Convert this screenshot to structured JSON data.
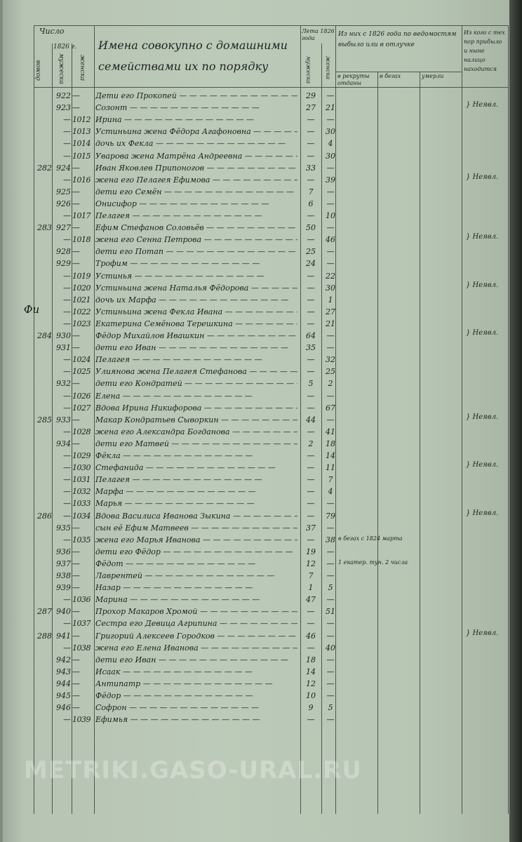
{
  "header": {
    "col_number": "Число",
    "col_houses": "домов",
    "col_year": "1826 г.",
    "col_male": "мужеска",
    "col_female": "женска",
    "col_names": "Имена совокупно с домашними семействами их по порядку",
    "col_ages": "Лета 1826 года",
    "col_age_male": "мужеска",
    "col_age_female": "женска",
    "col_departed": "Из них с 1826 года по ведомостям выбыло или в отлучке",
    "col_dep_1": "в рекруты отданы",
    "col_dep_2": "в бегах",
    "col_dep_3": "умерли",
    "col_remarks": "Из кого с тех пор прибыло и ныне налицо находится"
  },
  "margin_mark": "Фи",
  "rows": [
    {
      "m": "922",
      "name": "Дети его Прокопей",
      "am": "29"
    },
    {
      "m": "923",
      "name": "Созонт",
      "am": "27",
      "af": "21"
    },
    {
      "f": "1012",
      "name": "Ирина"
    },
    {
      "f": "1013",
      "name": "Устиньина жена Фёдора Агафоновна",
      "af": "30"
    },
    {
      "f": "1014",
      "name": "дочь их Фекла",
      "af": "4"
    },
    {
      "f": "1015",
      "name": "Уварова жена Матрёна Андреевна",
      "af": "30"
    },
    {
      "house": "282",
      "m": "924",
      "name": "Иван Яковлев Припоногов",
      "am": "33"
    },
    {
      "f": "1016",
      "name": "жена его Пелагея Ефимова",
      "af": "39"
    },
    {
      "m": "925",
      "name": "дети его Семён",
      "am": "7"
    },
    {
      "m": "926",
      "name": "Онисифор",
      "am": "6"
    },
    {
      "f": "1017",
      "name": "Пелагея",
      "af": "10"
    },
    {
      "house": "283",
      "m": "927",
      "name": "Ефим Стефанов Соловьёв",
      "am": "50"
    },
    {
      "f": "1018",
      "name": "жена его Сенна Петрова",
      "af": "46"
    },
    {
      "m": "928",
      "name": "дети его Потап",
      "am": "25"
    },
    {
      "m": "929",
      "name": "Трофим",
      "am": "24"
    },
    {
      "f": "1019",
      "name": "Устинья",
      "af": "22"
    },
    {
      "f": "1020",
      "name": "Устиньина жена Наталья Фёдорова",
      "af": "30"
    },
    {
      "f": "1021",
      "name": "дочь их Марфа",
      "af": "1"
    },
    {
      "f": "1022",
      "name": "Устиньина жена Фекла Ивана",
      "af": "27"
    },
    {
      "f": "1023",
      "name": "Екатерина Семёнова Терешкина",
      "af": "21"
    },
    {
      "house": "284",
      "m": "930",
      "name": "Фёдор Михайлов Ивашкин",
      "am": "64"
    },
    {
      "m": "931",
      "name": "дети его Иван",
      "am": "35"
    },
    {
      "f": "1024",
      "name": "Пелагея",
      "af": "32"
    },
    {
      "f": "1025",
      "name": "Улиянова жена Пелагея Стефанова",
      "af": "25"
    },
    {
      "m": "932",
      "name": "дети его Кондратей",
      "am": "5",
      "af": "2"
    },
    {
      "f": "1026",
      "name": "Елена"
    },
    {
      "f": "1027",
      "name": "Вдова Ирина Никифорова",
      "af": "67"
    },
    {
      "house": "285",
      "m": "933",
      "name": "Макар Кондратьев Сыворкин",
      "am": "44"
    },
    {
      "f": "1028",
      "name": "жена его Александра Богданова",
      "af": "41"
    },
    {
      "m": "934",
      "name": "дети его Матвей",
      "am": "2",
      "af": "18"
    },
    {
      "f": "1029",
      "name": "Фёкла",
      "af": "14"
    },
    {
      "f": "1030",
      "name": "Стефанида",
      "af": "11"
    },
    {
      "f": "1031",
      "name": "Пелагея",
      "af": "7"
    },
    {
      "f": "1032",
      "name": "Марфа",
      "af": "4"
    },
    {
      "f": "1033",
      "name": "Марья"
    },
    {
      "house": "286",
      "f": "1034",
      "name": "Вдова Василиса Иванова Зыкина",
      "af": "79"
    },
    {
      "m": "935",
      "name": "сын её Ефим Матвеев",
      "am": "37"
    },
    {
      "f": "1035",
      "name": "жена его Марья Иванова",
      "af": "38",
      "note": "в бегах с 1824 марта"
    },
    {
      "m": "936",
      "name": "дети его Фёдор",
      "am": "19"
    },
    {
      "m": "937",
      "name": "Фёдот",
      "am": "12",
      "note": "1 екатер. тун. 2 числа"
    },
    {
      "m": "938",
      "name": "Лаврентей",
      "am": "7"
    },
    {
      "m": "939",
      "name": "Назар",
      "am": "1",
      "af": "5"
    },
    {
      "f": "1036",
      "name": "Марина",
      "am": "47"
    },
    {
      "house": "287",
      "m": "940",
      "name": "Прохор Макаров Хромой",
      "af": "51"
    },
    {
      "f": "1037",
      "name": "Сестра его Девица Агрипина"
    },
    {
      "house": "288",
      "m": "941",
      "name": "Григорий Алексеев Городков",
      "am": "46"
    },
    {
      "f": "1038",
      "name": "жена его Елена Иванова",
      "af": "40"
    },
    {
      "m": "942",
      "name": "дети его Иван",
      "am": "18"
    },
    {
      "m": "943",
      "name": "Исаак",
      "am": "14"
    },
    {
      "m": "944",
      "name": "Антипатр",
      "am": "12"
    },
    {
      "m": "945",
      "name": "Фёдор",
      "am": "10"
    },
    {
      "m": "946",
      "name": "Софрон",
      "am": "9",
      "af": "5"
    },
    {
      "f": "1039",
      "name": "Ефимья"
    }
  ],
  "remarks": [
    {
      "row": 1,
      "text": "}  Неявл."
    },
    {
      "row": 7,
      "text": "}  Неявл."
    },
    {
      "row": 12,
      "text": "}  Неявл."
    },
    {
      "row": 16,
      "text": "}  Неявл."
    },
    {
      "row": 20,
      "text": "}  Неявл."
    },
    {
      "row": 27,
      "text": "}  Неявл."
    },
    {
      "row": 31,
      "text": "}  Неявл."
    },
    {
      "row": 35,
      "text": "}  Неявл."
    },
    {
      "row": 45,
      "text": "}  Неявл."
    }
  ],
  "watermark": "METRIKI.GASO-URAL.RU"
}
